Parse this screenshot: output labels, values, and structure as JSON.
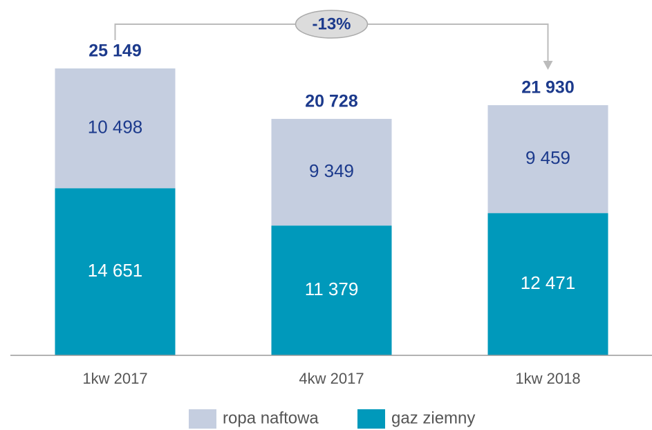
{
  "chart_data": {
    "type": "stacked_bar",
    "categories": [
      "1kw 2017",
      "4kw 2017",
      "1kw 2018"
    ],
    "series": [
      {
        "name": "gaz ziemny",
        "color": "#0099bb",
        "values": [
          14651,
          11379,
          12471
        ],
        "value_labels": [
          "14 651",
          "11 379",
          "12 471"
        ]
      },
      {
        "name": "ropa naftowa",
        "color": "#c5cee0",
        "values": [
          10498,
          9349,
          9459
        ],
        "value_labels": [
          "10 498",
          "9 349",
          "9 459"
        ]
      }
    ],
    "totals": {
      "values": [
        25149,
        20728,
        21930
      ],
      "value_labels": [
        "25 149",
        "20 728",
        "21 930"
      ]
    },
    "annotation": "-13%"
  }
}
